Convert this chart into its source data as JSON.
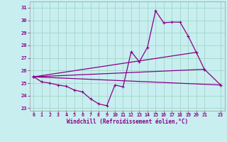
{
  "xlabel": "Windchill (Refroidissement éolien,°C)",
  "background_color": "#c8eef0",
  "grid_color": "#a0d8c8",
  "line_color": "#880088",
  "xlim": [
    -0.5,
    23.5
  ],
  "ylim": [
    22.8,
    31.5
  ],
  "xticks": [
    0,
    1,
    2,
    3,
    4,
    5,
    6,
    7,
    8,
    9,
    10,
    11,
    12,
    13,
    14,
    15,
    16,
    17,
    18,
    19,
    20,
    21,
    23
  ],
  "yticks": [
    23,
    24,
    25,
    26,
    27,
    28,
    29,
    30,
    31
  ],
  "series_main": {
    "x": [
      0,
      1,
      2,
      3,
      4,
      5,
      6,
      7,
      8,
      9,
      10,
      11,
      12,
      13,
      14,
      15,
      16,
      17,
      18,
      19,
      20,
      21,
      23
    ],
    "y": [
      25.5,
      25.1,
      25.0,
      24.85,
      24.75,
      24.45,
      24.3,
      23.75,
      23.35,
      23.2,
      24.85,
      24.7,
      27.5,
      26.7,
      27.85,
      30.75,
      29.8,
      29.85,
      29.85,
      28.75,
      27.45,
      26.1,
      24.85
    ]
  },
  "series_lines": [
    {
      "x": [
        0,
        23
      ],
      "y": [
        25.5,
        24.85
      ]
    },
    {
      "x": [
        0,
        20
      ],
      "y": [
        25.5,
        27.45
      ]
    },
    {
      "x": [
        0,
        21
      ],
      "y": [
        25.5,
        26.1
      ]
    }
  ]
}
